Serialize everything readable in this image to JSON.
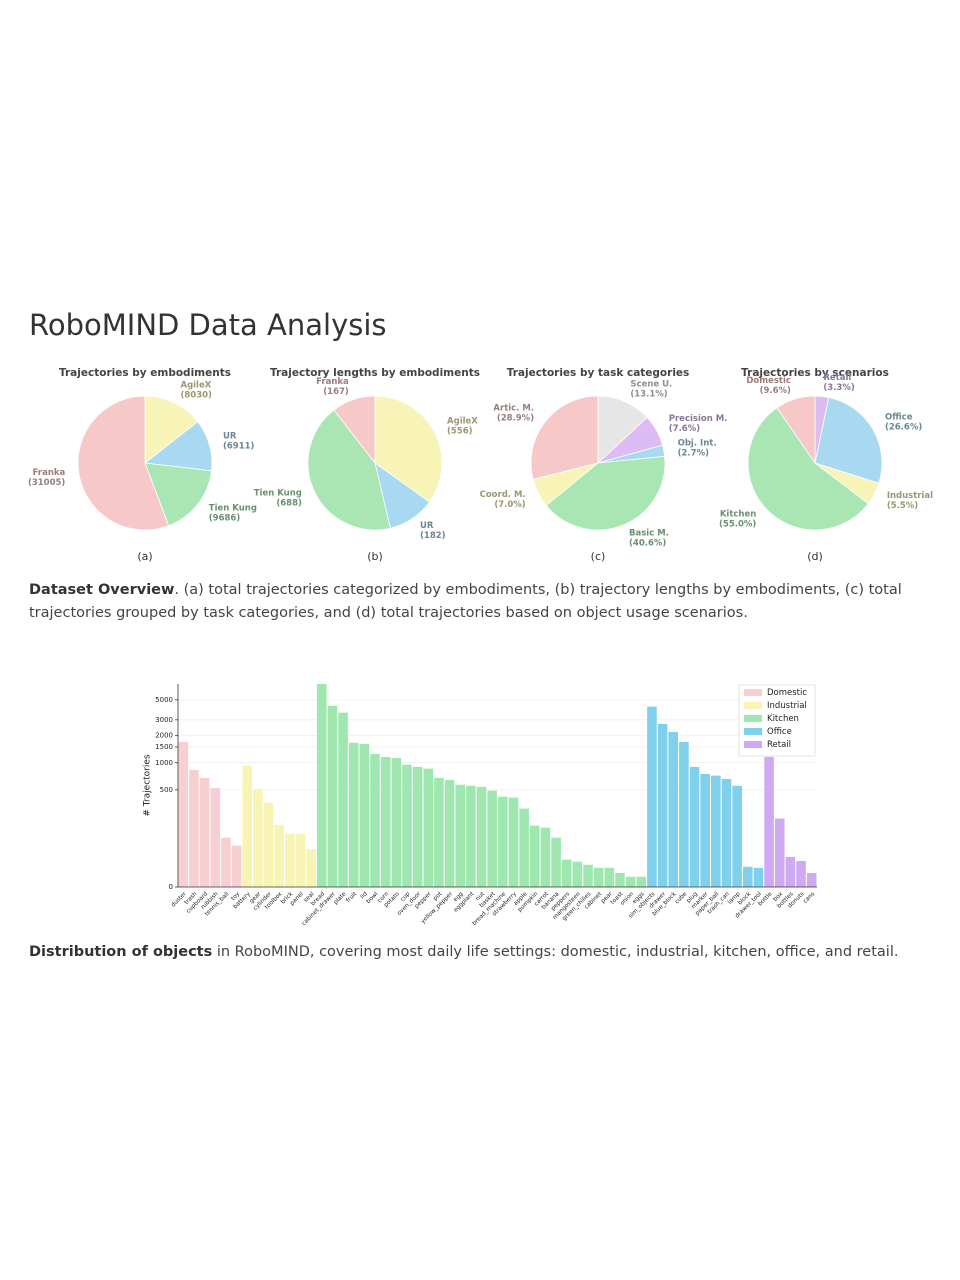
{
  "header": {
    "title": "RoboMIND Data Analysis"
  },
  "chart_data": [
    {
      "type": "pie",
      "title": "Trajectories by embodiments",
      "panel": "(a)",
      "categories": [
        "AgileX",
        "UR",
        "Tien Kung",
        "Franka"
      ],
      "values": [
        8030,
        6911,
        9686,
        31005
      ],
      "value_labels": [
        "(8030)",
        "(6911)",
        "(9686)",
        "(31005)"
      ],
      "colors": [
        "#f8f4b8",
        "#a9d9f0",
        "#a9e6b4",
        "#f6c8c8"
      ]
    },
    {
      "type": "pie",
      "title": "Trajectory lengths by embodiments",
      "panel": "(b)",
      "categories": [
        "AgileX",
        "UR",
        "Tien Kung",
        "Franka"
      ],
      "values": [
        556,
        182,
        688,
        167
      ],
      "value_labels": [
        "(556)",
        "(182)",
        "(688)",
        "(167)"
      ],
      "colors": [
        "#f8f4b8",
        "#a9d9f0",
        "#a9e6b4",
        "#f6c8c8"
      ]
    },
    {
      "type": "pie",
      "title": "Trajectories by task categories",
      "panel": "(c)",
      "categories": [
        "Scene U.",
        "Precision M.",
        "Obj. Int.",
        "Basic M.",
        "Coord. M.",
        "Artic. M."
      ],
      "values": [
        13.1,
        7.6,
        2.7,
        40.6,
        7.0,
        28.9
      ],
      "value_labels": [
        "(13.1%)",
        "(7.6%)",
        "(2.7%)",
        "(40.6%)",
        "(7.0%)",
        "(28.9%)"
      ],
      "colors": [
        "#e6e6e6",
        "#dcbcf3",
        "#a9d9f0",
        "#a9e6b4",
        "#f8f4b8",
        "#f6c8c8"
      ]
    },
    {
      "type": "pie",
      "title": "Trajectories by scenarios",
      "panel": "(d)",
      "categories": [
        "Retail",
        "Office",
        "Industrial",
        "Kitchen",
        "Domestic"
      ],
      "values": [
        3.3,
        26.6,
        5.5,
        55.0,
        9.6
      ],
      "value_labels": [
        "(3.3%)",
        "(26.6%)",
        "(5.5%)",
        "(55.0%)",
        "(9.6%)"
      ],
      "colors": [
        "#dcbcf3",
        "#a9d9f0",
        "#f8f4b8",
        "#a9e6b4",
        "#f6c8c8"
      ]
    },
    {
      "type": "bar",
      "ylabel": "# Trajectories",
      "yscale": "symlog",
      "ylim": [
        0,
        7500
      ],
      "yticks": [
        0,
        500,
        1000,
        1500,
        2000,
        3000,
        5000
      ],
      "grid": true,
      "legend": "upper right",
      "series": [
        {
          "name": "Domestic",
          "color": "#f7cfd3",
          "categories": [
            "duster",
            "trash",
            "cupboard",
            "rubbish",
            "tennis_ball",
            "toy"
          ],
          "values": [
            1705,
            835,
            680,
            525,
            147,
            120
          ]
        },
        {
          "name": "Industrial",
          "color": "#f8f4b4",
          "categories": [
            "battery",
            "gear",
            "cylinder",
            "toolbox",
            "brick",
            "panel",
            "seal"
          ],
          "values": [
            925,
            510,
            360,
            205,
            163,
            163,
            110
          ]
        },
        {
          "name": "Kitchen",
          "color": "#9ee8b0",
          "categories": [
            "bread",
            "cabinet_drawer",
            "plate",
            "fruit",
            "lid",
            "bowl",
            "corn",
            "potato",
            "cup",
            "oven_door",
            "pepper",
            "pot",
            "yellow_pepper",
            "egg",
            "eggplant",
            "nut",
            "basket",
            "bread_machine",
            "strawberry",
            "apple",
            "pumpkin",
            "carrot",
            "banana",
            "peppers",
            "mangosteen",
            "green_chilies",
            "cabinet",
            "pear",
            "toast",
            "onion",
            "eggs"
          ],
          "values": [
            7500,
            4300,
            3600,
            1670,
            1620,
            1250,
            1160,
            1130,
            950,
            900,
            860,
            680,
            645,
            570,
            555,
            540,
            490,
            420,
            410,
            310,
            200,
            190,
            147,
            80,
            74,
            65,
            56,
            56,
            41,
            30,
            30
          ]
        },
        {
          "name": "Office",
          "color": "#7fd0ea",
          "categories": [
            "sim_objects",
            "drawer",
            "blue_block",
            "cube",
            "plug",
            "marker",
            "paper_ball",
            "trash_can",
            "lamp",
            "block",
            "drawer_tool"
          ],
          "values": [
            4200,
            2700,
            2200,
            1700,
            900,
            750,
            720,
            660,
            555,
            59,
            56
          ]
        },
        {
          "name": "Retail",
          "color": "#cfa9f2",
          "categories": [
            "bottle",
            "box",
            "bottles",
            "donuts",
            "cans"
          ],
          "values": [
            1160,
            240,
            88,
            76,
            41
          ]
        }
      ]
    }
  ],
  "captions": [
    {
      "bold": "Dataset Overview",
      "text": ". (a) total trajectories categorized by embodiments, (b) trajectory lengths by embodiments, (c) total trajectories grouped by task categories, and (d) total trajectories based on object usage scenarios."
    },
    {
      "bold": "Distribution of objects",
      "text": " in RoboMIND, covering most daily life settings: domestic, industrial, kitchen, office, and retail."
    }
  ]
}
